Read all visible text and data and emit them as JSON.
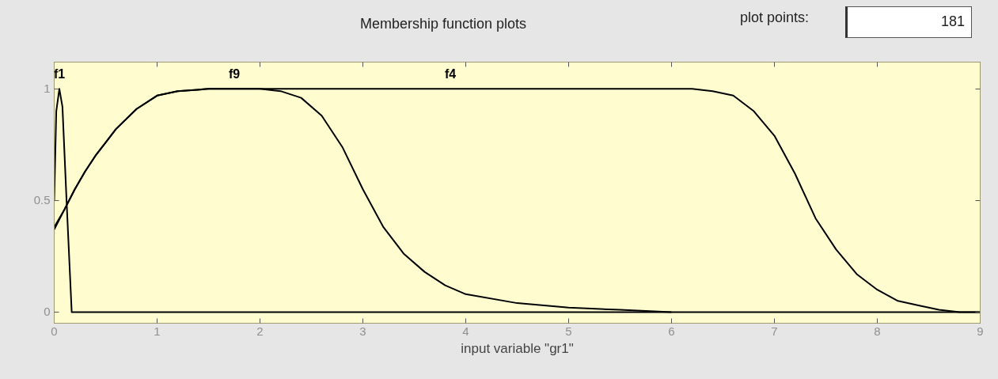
{
  "chart_data": {
    "type": "line",
    "title": "Membership function plots",
    "xlabel": "input variable \"gr1\"",
    "xlim": [
      0,
      9
    ],
    "ylim": [
      -0.05,
      1.12
    ],
    "xticks": [
      0,
      1,
      2,
      3,
      4,
      5,
      6,
      7,
      8,
      9
    ],
    "yticks": [
      0,
      0.5,
      1
    ],
    "grid": false,
    "marker": "none",
    "line_style": "solid",
    "annotations": [
      "plot points:",
      "181"
    ],
    "series": [
      {
        "name": "f1",
        "color": "#000000",
        "x": [
          0,
          0.02,
          0.05,
          0.08,
          0.12,
          0.15,
          0.17,
          9
        ],
        "values": [
          0.5,
          0.9,
          1,
          0.92,
          0.5,
          0.2,
          0,
          0
        ]
      },
      {
        "name": "f9",
        "color": "#000000",
        "x": [
          0,
          0.1,
          0.2,
          0.3,
          0.4,
          0.5,
          0.6,
          0.8,
          1.0,
          1.2,
          1.5,
          2.0,
          2.2,
          2.4,
          2.6,
          2.8,
          3.0,
          3.2,
          3.4,
          3.6,
          3.8,
          4.0,
          4.5,
          5.0,
          5.5,
          6.0
        ],
        "values": [
          0.38,
          0.46,
          0.55,
          0.63,
          0.7,
          0.76,
          0.82,
          0.91,
          0.97,
          0.99,
          1,
          1,
          0.99,
          0.96,
          0.88,
          0.74,
          0.55,
          0.38,
          0.26,
          0.18,
          0.12,
          0.08,
          0.04,
          0.02,
          0.01,
          0
        ]
      },
      {
        "name": "f4",
        "color": "#000000",
        "x": [
          0,
          0.1,
          0.2,
          0.3,
          0.4,
          0.5,
          0.6,
          0.8,
          1.0,
          1.2,
          1.5,
          6.2,
          6.4,
          6.6,
          6.8,
          7.0,
          7.2,
          7.4,
          7.6,
          7.8,
          8.0,
          8.2,
          8.4,
          8.6,
          8.8,
          9
        ],
        "values": [
          0.37,
          0.46,
          0.55,
          0.63,
          0.7,
          0.76,
          0.82,
          0.91,
          0.97,
          0.99,
          1,
          1,
          0.99,
          0.97,
          0.9,
          0.79,
          0.62,
          0.42,
          0.28,
          0.17,
          0.1,
          0.05,
          0.03,
          0.01,
          0,
          0
        ]
      }
    ]
  }
}
